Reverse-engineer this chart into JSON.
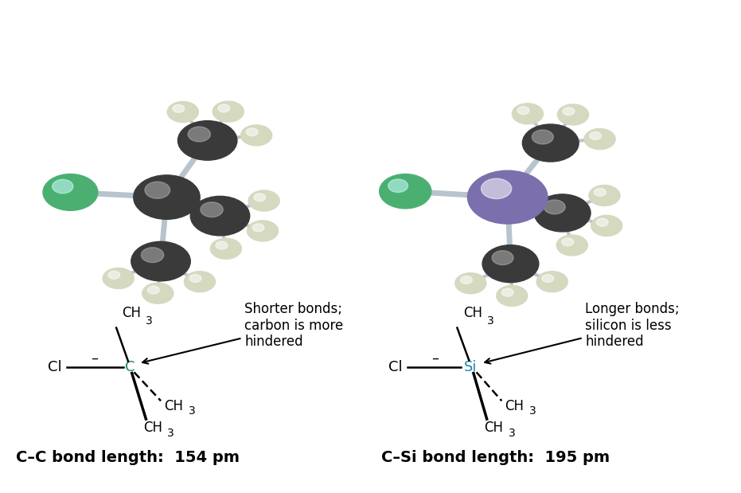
{
  "bg_color": "#ffffff",
  "left_molecule": {
    "carbon_color": "#3a3a3a",
    "hydrogen_color": "#d4d9c0",
    "chlorine_color": "#4caf72",
    "bond_color": "#b8c4cc"
  },
  "right_molecule": {
    "silicon_color": "#7b6fad",
    "carbon_color": "#3a3a3a",
    "hydrogen_color": "#d4d9c0",
    "chlorine_color": "#4caf72",
    "bond_color": "#b8c4cc"
  },
  "left_formula": {
    "center_label": "C",
    "center_color": "#1a8a4a",
    "annotation": "Shorter bonds;\ncarbon is more\nhindered",
    "bond_length_text": "C–C bond length:  154 pm"
  },
  "right_formula": {
    "center_label": "Si",
    "center_color": "#1a8aaa",
    "annotation": "Longer bonds;\nsilicon is less\nhindered",
    "bond_length_text": "C–Si bond length:  195 pm"
  }
}
